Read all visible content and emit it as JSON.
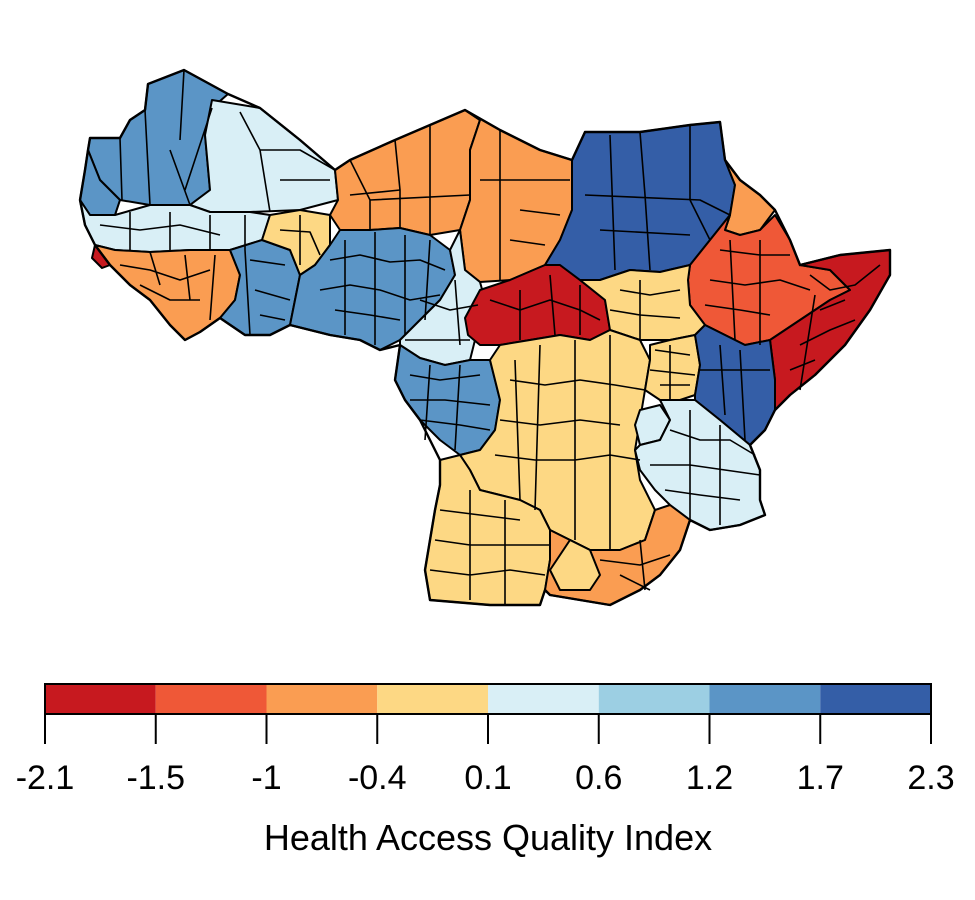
{
  "legend": {
    "title": "Health Access Quality Index",
    "breaks": [
      "-2.1",
      "-1.5",
      "-1",
      "-0.4",
      "0.1",
      "0.6",
      "1.2",
      "1.7",
      "2.3"
    ],
    "colors": [
      "#c7191f",
      "#ef5837",
      "#fa9d52",
      "#fdd884",
      "#d9eff6",
      "#9ccfe3",
      "#5b95c6",
      "#345ea7"
    ]
  }
}
